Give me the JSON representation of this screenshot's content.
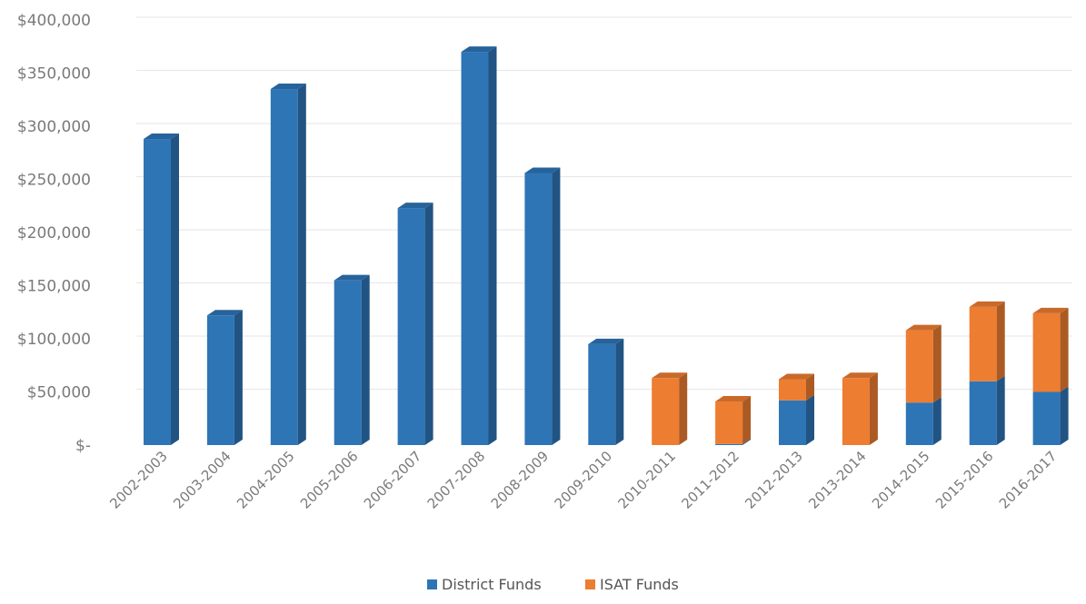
{
  "chart_data": {
    "type": "bar",
    "stacked": true,
    "style": "3d-column",
    "categories": [
      "2002-2003",
      "2003-2004",
      "2004-2005",
      "2005-2006",
      "2006-2007",
      "2007-2008",
      "2008-2009",
      "2009-2010",
      "2010-2011",
      "2011-2012",
      "2012-2013",
      "2013-2014",
      "2014-2015",
      "2015-2016",
      "2016-2017"
    ],
    "series": [
      {
        "name": "District Funds",
        "color": "#2E75B6",
        "values": [
          288000,
          122000,
          335000,
          155000,
          223000,
          370000,
          256000,
          95000,
          0,
          1000,
          42000,
          0,
          40000,
          60000,
          50000
        ]
      },
      {
        "name": "ISAT Funds",
        "color": "#ED7D31",
        "values": [
          0,
          0,
          0,
          0,
          0,
          0,
          0,
          0,
          63000,
          40000,
          20000,
          63000,
          68000,
          70000,
          74000
        ]
      }
    ],
    "ylim": [
      0,
      400000
    ],
    "yticks": [
      0,
      50000,
      100000,
      150000,
      200000,
      250000,
      300000,
      350000,
      400000
    ],
    "ytick_labels": [
      "$-",
      "$50,000",
      "$100,000",
      "$150,000",
      "$200,000",
      "$250,000",
      "$300,000",
      "$350,000",
      "$400,000"
    ],
    "grid": true,
    "legend": "bottom",
    "title": "",
    "xlabel": "",
    "ylabel": ""
  }
}
